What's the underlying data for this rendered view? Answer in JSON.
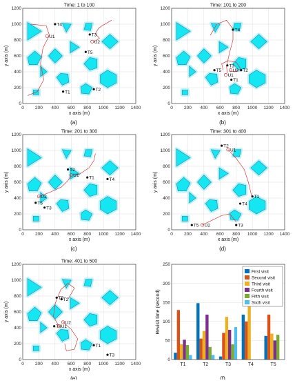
{
  "panels": [
    {
      "caption": "(a)",
      "chart_data": {
        "type": "scatter",
        "title": "Time: 1 to 100",
        "xlabel": "x axis (m)",
        "ylabel": "y axis (m)",
        "xlim": [
          0,
          1400
        ],
        "ylim": [
          0,
          1200
        ],
        "xticks": [
          "0",
          "200",
          "400",
          "600",
          "800",
          "1000",
          "1200",
          "1400"
        ],
        "yticks": [
          "0",
          "200",
          "400",
          "600",
          "800",
          "1000",
          "1200"
        ],
        "grid": true,
        "targets": [
          {
            "name": "T1",
            "x": 500,
            "y": 150
          },
          {
            "name": "T2",
            "x": 880,
            "y": 180
          },
          {
            "name": "T3",
            "x": 830,
            "y": 870
          },
          {
            "name": "T4",
            "x": 400,
            "y": 1000
          },
          {
            "name": "T5",
            "x": 780,
            "y": 650
          }
        ],
        "uavs": [
          {
            "name": "U1",
            "x": 300,
            "y": 850
          },
          {
            "name": "U2",
            "x": 860,
            "y": 780
          }
        ],
        "paths": [
          [
            [
              100,
              1000
            ],
            [
              290,
              980
            ],
            [
              330,
              860
            ],
            [
              250,
              700
            ],
            [
              220,
              500
            ],
            [
              260,
              300
            ],
            [
              180,
              150
            ],
            [
              60,
              100
            ]
          ],
          [
            [
              1100,
              1050
            ],
            [
              1000,
              990
            ],
            [
              940,
              950
            ],
            [
              900,
              880
            ],
            [
              950,
              820
            ],
            [
              880,
              780
            ]
          ]
        ]
      }
    },
    {
      "caption": "(b)",
      "chart_data": {
        "type": "scatter",
        "title": "Time: 101 to 200",
        "xlabel": "x axis (m)",
        "ylabel": "y axis (m)",
        "xlim": [
          0,
          1400
        ],
        "ylim": [
          0,
          1200
        ],
        "xticks": [
          "0",
          "200",
          "400",
          "600",
          "800",
          "1000",
          "1200",
          "1400"
        ],
        "yticks": [
          "0",
          "200",
          "400",
          "600",
          "800",
          "1000",
          "1200"
        ],
        "grid": true,
        "targets": [
          {
            "name": "T1",
            "x": 740,
            "y": 300
          },
          {
            "name": "T2",
            "x": 860,
            "y": 420
          },
          {
            "name": "T3",
            "x": 690,
            "y": 480
          },
          {
            "name": "T4",
            "x": 760,
            "y": 930
          },
          {
            "name": "T5",
            "x": 530,
            "y": 420
          }
        ],
        "uavs": [
          {
            "name": "U1",
            "x": 670,
            "y": 360
          },
          {
            "name": "U2",
            "x": 730,
            "y": 420
          }
        ],
        "paths": [
          [
            [
              480,
              860
            ],
            [
              560,
              1000
            ],
            [
              680,
              1050
            ],
            [
              760,
              940
            ],
            [
              760,
              800
            ],
            [
              720,
              650
            ],
            [
              680,
              470
            ],
            [
              690,
              380
            ]
          ],
          [
            [
              640,
              420
            ],
            [
              620,
              500
            ],
            [
              700,
              540
            ],
            [
              800,
              520
            ],
            [
              860,
              430
            ],
            [
              780,
              400
            ],
            [
              720,
              410
            ]
          ]
        ]
      }
    },
    {
      "caption": "(c)",
      "chart_data": {
        "type": "scatter",
        "title": "Time: 201 to 300",
        "xlabel": "x axis (m)",
        "ylabel": "y axis (m)",
        "xlim": [
          0,
          1400
        ],
        "ylim": [
          0,
          1200
        ],
        "xticks": [
          "0",
          "200",
          "400",
          "600",
          "800",
          "1000",
          "1200",
          "1400"
        ],
        "yticks": [
          "0",
          "200",
          "400",
          "600",
          "800",
          "1000",
          "1200"
        ],
        "grid": true,
        "targets": [
          {
            "name": "T1",
            "x": 800,
            "y": 660
          },
          {
            "name": "T2",
            "x": 560,
            "y": 760
          },
          {
            "name": "T3",
            "x": 270,
            "y": 280
          },
          {
            "name": "T4",
            "x": 1050,
            "y": 640
          },
          {
            "name": "T5",
            "x": 160,
            "y": 340
          }
        ],
        "uavs": [
          {
            "name": "U1",
            "x": 600,
            "y": 690
          },
          {
            "name": "U2",
            "x": 200,
            "y": 420
          }
        ],
        "paths": [
          [
            [
              620,
              700
            ],
            [
              700,
              700
            ],
            [
              820,
              780
            ],
            [
              880,
              870
            ],
            [
              900,
              960
            ]
          ],
          [
            [
              200,
              420
            ],
            [
              330,
              470
            ],
            [
              480,
              540
            ],
            [
              560,
              620
            ],
            [
              600,
              690
            ]
          ]
        ]
      }
    },
    {
      "caption": "(d)",
      "chart_data": {
        "type": "scatter",
        "title": "Time: 301 to 400",
        "xlabel": "x axis (m)",
        "ylabel": "y axis (m)",
        "xlim": [
          0,
          1400
        ],
        "ylim": [
          0,
          1200
        ],
        "xticks": [
          "0",
          "200",
          "400",
          "600",
          "800",
          "1000",
          "1200",
          "1400"
        ],
        "yticks": [
          "0",
          "200",
          "400",
          "600",
          "800",
          "1000",
          "1200"
        ],
        "grid": true,
        "targets": [
          {
            "name": "T1",
            "x": 1000,
            "y": 420
          },
          {
            "name": "T2",
            "x": 620,
            "y": 1060
          },
          {
            "name": "T3",
            "x": 800,
            "y": 60
          },
          {
            "name": "T4",
            "x": 850,
            "y": 330
          },
          {
            "name": "T5",
            "x": 250,
            "y": 60
          }
        ],
        "uavs": [
          {
            "name": "U1",
            "x": 700,
            "y": 1010
          },
          {
            "name": "U2",
            "x": 380,
            "y": 60
          }
        ],
        "paths": [
          [
            [
              700,
              1010
            ],
            [
              800,
              900
            ],
            [
              900,
              760
            ],
            [
              950,
              600
            ],
            [
              990,
              430
            ]
          ],
          [
            [
              380,
              60
            ],
            [
              500,
              120
            ],
            [
              620,
              180
            ],
            [
              720,
              200
            ],
            [
              800,
              100
            ]
          ]
        ]
      }
    },
    {
      "caption": "(e)",
      "chart_data": {
        "type": "scatter",
        "title": "Time: 401 to 500",
        "xlabel": "x axis (m)",
        "ylabel": "y axis (m)",
        "xlim": [
          0,
          1400
        ],
        "ylim": [
          0,
          1200
        ],
        "xticks": [
          "0",
          "200",
          "400",
          "600",
          "800",
          "1000",
          "1200",
          "1400"
        ],
        "yticks": [
          "0",
          "200",
          "400",
          "600",
          "800",
          "1000",
          "1200"
        ],
        "grid": true,
        "targets": [
          {
            "name": "T1",
            "x": 880,
            "y": 180
          },
          {
            "name": "T2",
            "x": 480,
            "y": 760
          },
          {
            "name": "T3",
            "x": 1050,
            "y": 60
          },
          {
            "name": "T4",
            "x": 390,
            "y": 420
          },
          {
            "name": "T5",
            "x": 420,
            "y": 780
          }
        ],
        "uavs": [
          {
            "name": "U1",
            "x": 450,
            "y": 420
          },
          {
            "name": "U2",
            "x": 500,
            "y": 470
          }
        ],
        "paths": [
          [
            [
              450,
              420
            ],
            [
              380,
              540
            ],
            [
              400,
              700
            ],
            [
              470,
              880
            ],
            [
              560,
              960
            ],
            [
              640,
              900
            ],
            [
              560,
              760
            ]
          ],
          [
            [
              500,
              470
            ],
            [
              600,
              380
            ],
            [
              680,
              260
            ],
            [
              640,
              130
            ],
            [
              540,
              110
            ],
            [
              520,
              200
            ]
          ]
        ]
      }
    },
    {
      "caption": "(f)",
      "chart_data": {
        "type": "bar",
        "title": "",
        "xlabel": "",
        "ylabel": "Revisit time (second)",
        "ylim": [
          0,
          250
        ],
        "yticks": [
          "0",
          "50",
          "100",
          "150",
          "200",
          "250"
        ],
        "grid": true,
        "legend": "top-right",
        "categories": [
          "T1",
          "T2",
          "T3",
          "T4",
          "T5"
        ],
        "series": [
          {
            "name": "First visit",
            "color": "#0072bd",
            "values": [
              18,
              148,
              8,
              118,
              62
            ]
          },
          {
            "name": "Second visit",
            "color": "#d95319",
            "values": [
              130,
              55,
              70,
              100,
              118
            ]
          },
          {
            "name": "Third visit",
            "color": "#edb120",
            "values": [
              40,
              75,
              112,
              148,
              68
            ]
          },
          {
            "name": "Fourth visit",
            "color": "#7e2f8e",
            "values": [
              52,
              118,
              78,
              0,
              50
            ]
          },
          {
            "name": "Fifth visit",
            "color": "#77ac30",
            "values": [
              38,
              33,
              40,
              0,
              65
            ]
          },
          {
            "name": "Sixth visit",
            "color": "#4dbeee",
            "values": [
              12,
              12,
              85,
              0,
              0
            ]
          }
        ]
      }
    }
  ]
}
